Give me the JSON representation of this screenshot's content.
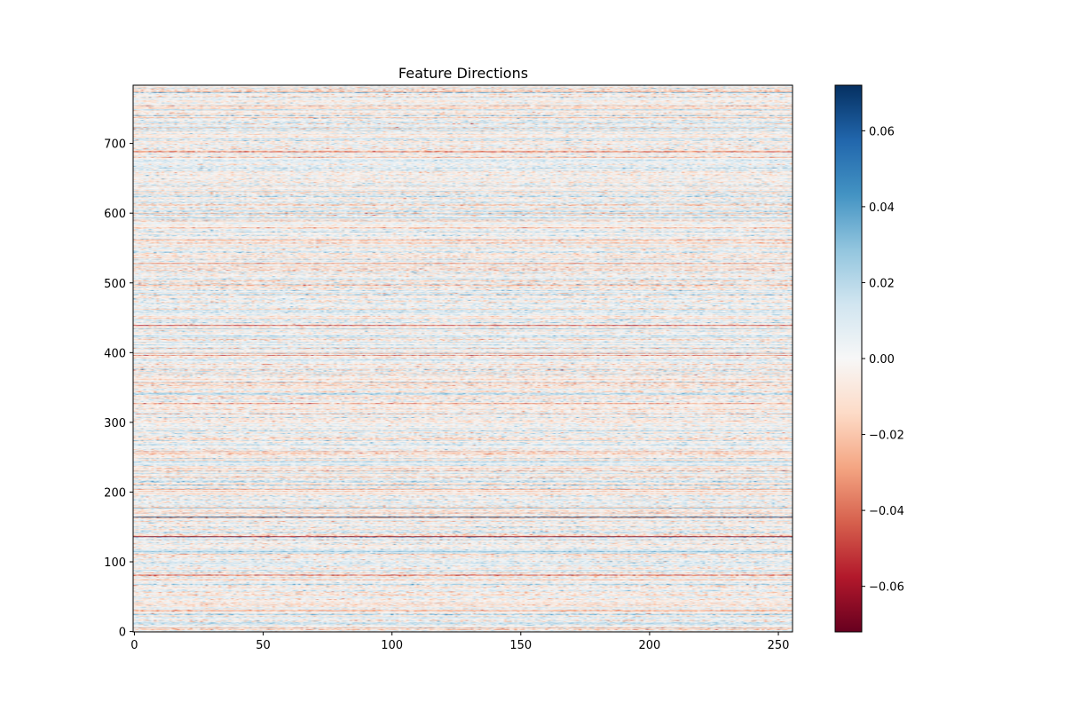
{
  "chart_data": {
    "type": "heatmap",
    "title": "Feature Directions",
    "xlabel": "",
    "ylabel": "",
    "colormap": "RdBu",
    "n_cols": 256,
    "n_rows": 784,
    "xlim": [
      -0.5,
      255.5
    ],
    "ylim": [
      783.5,
      -0.5
    ],
    "xticks": [
      0,
      50,
      100,
      150,
      200,
      250
    ],
    "xtick_labels": [
      "0",
      "50",
      "100",
      "150",
      "200",
      "250"
    ],
    "yticks": [
      0,
      100,
      200,
      300,
      400,
      500,
      600,
      700
    ],
    "ytick_labels": [
      "0",
      "100",
      "200",
      "300",
      "400",
      "500",
      "600",
      "700"
    ],
    "colorbar": {
      "vmin": -0.072,
      "vmax": 0.072,
      "ticks": [
        0.06,
        0.04,
        0.02,
        0.0,
        -0.02,
        -0.04,
        -0.06
      ],
      "tick_labels": [
        "0.06",
        "0.04",
        "0.02",
        "0.00",
        "−0.02",
        "−0.04",
        "−0.06"
      ]
    },
    "colormap_stops": [
      "#67001f",
      "#b2182b",
      "#d6604d",
      "#f4a582",
      "#fddbc7",
      "#f7f7f7",
      "#d1e5f0",
      "#92c5de",
      "#4393c3",
      "#2166ac",
      "#053061"
    ],
    "grid": false
  }
}
